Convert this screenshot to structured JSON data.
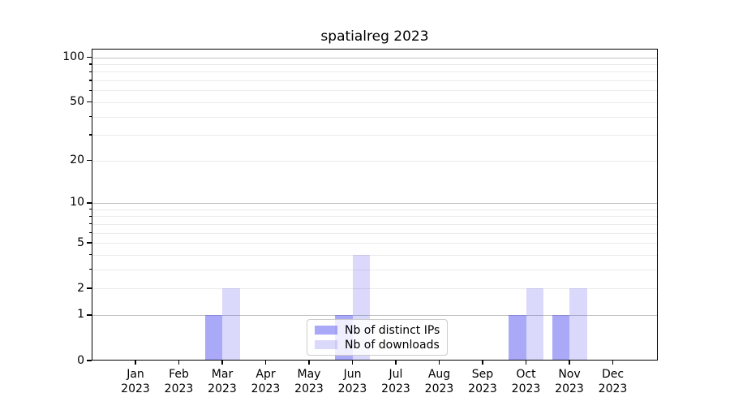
{
  "title": "spatialreg 2023",
  "chart_data": {
    "type": "bar",
    "title": "spatialreg 2023",
    "categories": [
      "Jan\n2023",
      "Feb\n2023",
      "Mar\n2023",
      "Apr\n2023",
      "May\n2023",
      "Jun\n2023",
      "Jul\n2023",
      "Aug\n2023",
      "Sep\n2023",
      "Oct\n2023",
      "Nov\n2023",
      "Dec\n2023"
    ],
    "series": [
      {
        "name": "Nb of distinct IPs",
        "color": "#5654f0",
        "alpha": 0.5,
        "values": [
          0,
          0,
          1,
          0,
          0,
          1,
          0,
          0,
          0,
          1,
          1,
          0
        ]
      },
      {
        "name": "Nb of downloads",
        "color": "#5654f0",
        "alpha": 0.22,
        "values": [
          0,
          0,
          2,
          0,
          0,
          4,
          0,
          0,
          0,
          2,
          2,
          0
        ]
      }
    ],
    "xlabel": "",
    "ylabel": "",
    "yscale": "log1p",
    "ylim": [
      0,
      114
    ],
    "yticks_labeled": [
      0,
      1,
      2,
      5,
      10,
      20,
      50,
      100
    ],
    "yticks_major_grid": [
      1,
      10,
      100
    ],
    "yticks_minor_grid": [
      2,
      3,
      4,
      5,
      6,
      7,
      8,
      9,
      20,
      30,
      40,
      50,
      60,
      70,
      80,
      90
    ],
    "grid": "horizontal",
    "legend_position": "lower center"
  },
  "legend": {
    "items": [
      {
        "label": "Nb of distinct IPs"
      },
      {
        "label": "Nb of downloads"
      }
    ]
  }
}
